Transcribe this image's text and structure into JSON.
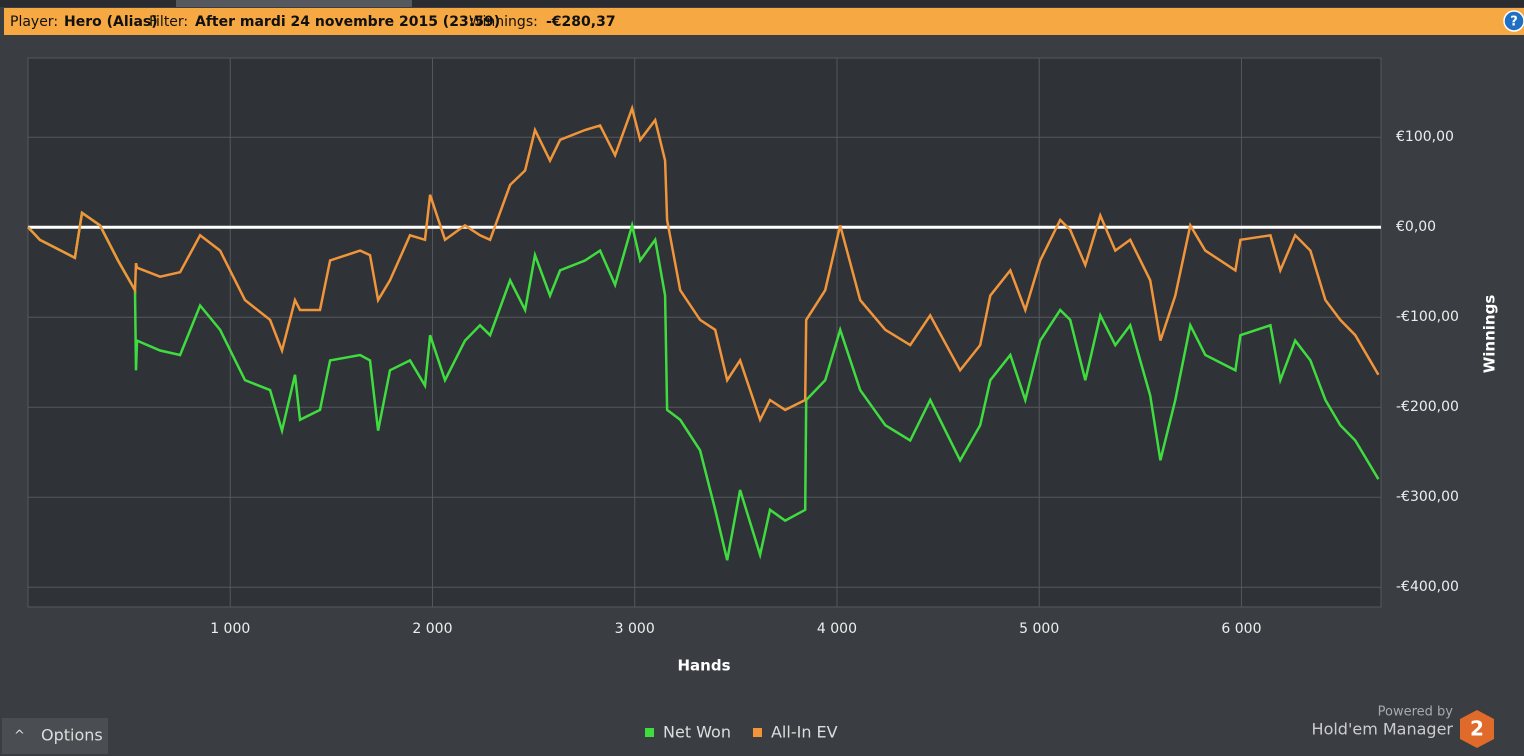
{
  "header": {
    "player_label": "Player:",
    "player": "Hero (Alias)",
    "filter_label": "Filter:",
    "filter": "After mardi 24 novembre 2015 (23:59)",
    "winnings_label": "Winnings:",
    "winnings": "-€280,37",
    "help": "?"
  },
  "footer": {
    "options": "Options",
    "powered_by": "Powered by",
    "product": "Hold'em Manager",
    "logo": "2"
  },
  "chart_data": {
    "type": "line",
    "x_label": "Hands",
    "y_label": "Winnings",
    "x": [
      0,
      59,
      232,
      267,
      356,
      445,
      529,
      534,
      539,
      653,
      752,
      851,
      950,
      1073,
      1197,
      1256,
      1320,
      1345,
      1444,
      1494,
      1642,
      1691,
      1731,
      1790,
      1889,
      1963,
      1988,
      2062,
      2161,
      2235,
      2285,
      2384,
      2458,
      2507,
      2581,
      2631,
      2754,
      2829,
      2903,
      2987,
      3027,
      3101,
      3150,
      3160,
      3225,
      3323,
      3398,
      3457,
      3521,
      3620,
      3669,
      3744,
      3843,
      3848,
      3942,
      4016,
      4115,
      4239,
      4362,
      4461,
      4609,
      4708,
      4758,
      4857,
      4931,
      5005,
      5104,
      5153,
      5228,
      5302,
      5376,
      5450,
      5549,
      5599,
      5673,
      5747,
      5821,
      5970,
      5995,
      6143,
      6192,
      6266,
      6341,
      6415,
      6489,
      6563,
      6677
    ],
    "series": [
      {
        "name": "Net Won",
        "color": "#3fdc3f",
        "values": [
          0,
          -14,
          -34,
          16,
          2,
          -37,
          -70,
          -159,
          -126,
          -137,
          -142,
          -87,
          -114,
          -170,
          -181,
          -226,
          -164,
          -214,
          -203,
          -148,
          -142,
          -148,
          -226,
          -159,
          -148,
          -176,
          -120,
          -170,
          -126,
          -109,
          -120,
          -59,
          -92,
          -31,
          -76,
          -48,
          -37,
          -26,
          -64,
          2,
          -37,
          -14,
          -76,
          -203,
          -214,
          -248,
          -314,
          -370,
          -292,
          -364,
          -314,
          -326,
          -314,
          -192,
          -170,
          -114,
          -181,
          -220,
          -237,
          -192,
          -259,
          -220,
          -170,
          -142,
          -192,
          -126,
          -92,
          -103,
          -170,
          -98,
          -131,
          -109,
          -187,
          -259,
          -192,
          -109,
          -142,
          -159,
          -120,
          -109,
          -170,
          -126,
          -148,
          -192,
          -220,
          -237,
          -280
        ]
      },
      {
        "name": "All-In EV",
        "color": "#f0953a",
        "values": [
          0,
          -14,
          -34,
          16,
          2,
          -37,
          -70,
          -40,
          -45,
          -55,
          -50,
          -9,
          -26,
          -81,
          -103,
          -137,
          -81,
          -92,
          -92,
          -37,
          -26,
          -31,
          -81,
          -59,
          -9,
          -14,
          36,
          -14,
          2,
          -9,
          -14,
          47,
          63,
          108,
          74,
          97,
          108,
          113,
          80,
          132,
          97,
          119,
          74,
          8,
          -70,
          -103,
          -114,
          -170,
          -148,
          -214,
          -192,
          -203,
          -192,
          -103,
          -70,
          2,
          -81,
          -114,
          -131,
          -98,
          -159,
          -131,
          -76,
          -48,
          -92,
          -37,
          8,
          -3,
          -42,
          13,
          -26,
          -14,
          -59,
          -126,
          -76,
          2,
          -26,
          -48,
          -14,
          -9,
          -48,
          -9,
          -26,
          -81,
          -103,
          -120,
          -164
        ]
      }
    ],
    "xlim": [
      0,
      6690
    ],
    "ylim": [
      -422,
      188
    ],
    "xticks": [
      {
        "value": 1000,
        "label": "1 000"
      },
      {
        "value": 2000,
        "label": "2 000"
      },
      {
        "value": 3000,
        "label": "3 000"
      },
      {
        "value": 4000,
        "label": "4 000"
      },
      {
        "value": 5000,
        "label": "5 000"
      },
      {
        "value": 6000,
        "label": "6 000"
      }
    ],
    "yticks": [
      {
        "value": -400,
        "label": "-€400,00"
      },
      {
        "value": -300,
        "label": "-€300,00"
      },
      {
        "value": -200,
        "label": "-€200,00"
      },
      {
        "value": -100,
        "label": "-€100,00"
      },
      {
        "value": 0,
        "label": "€0,00"
      },
      {
        "value": 100,
        "label": "€100,00"
      }
    ],
    "grid": true
  }
}
